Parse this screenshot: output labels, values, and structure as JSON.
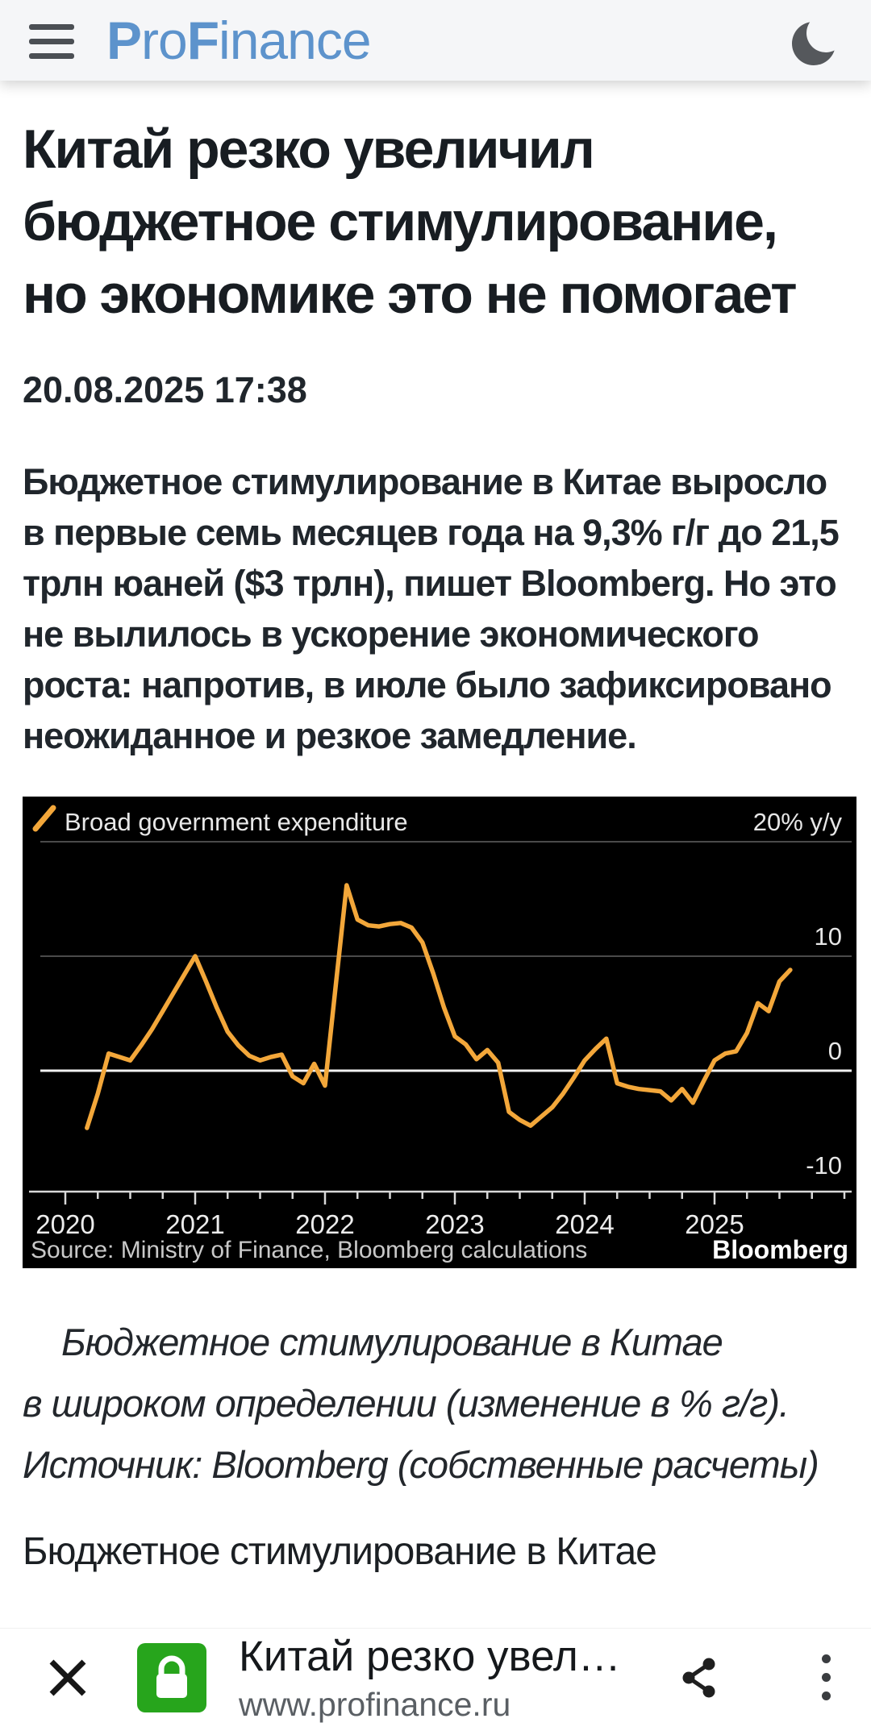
{
  "header": {
    "brand": "ProFinance",
    "brand_parts": {
      "p1": "P",
      "p2": "ro",
      "p3": "F",
      "p4": "inance"
    },
    "icons": [
      "hamburger-icon",
      "moon-icon"
    ],
    "brand_color": "#5D93CC"
  },
  "article": {
    "title": "Китай резко увеличил бюджетное стимулирование, но экономике это не помогает",
    "datetime": "20.08.2025 17:38",
    "lead": "Бюджетное стимулирование в Китае выросло в первые семь месяцев года на 9,3% г/г до 21,5 трлн юаней ($3 трлн), пишет Bloomberg. Но это не вылилось в ускорение экономического роста: напротив, в июле было зафиксировано неожиданное и резкое замедление.",
    "caption_lines": [
      "Бюджетное стимулирование в Китае",
      "в широком определении (изменение в % г/г).",
      "Источник: Bloomberg (собственные расчеты)"
    ],
    "next_paragraph": "Бюджетное стимулирование в Китае"
  },
  "chart_data": {
    "type": "line",
    "legend": "Broad government expenditure",
    "x_start": "2020-03",
    "x_freq": "monthly",
    "x_tick_labels": [
      "2020",
      "2021",
      "2022",
      "2023",
      "2024",
      "2025"
    ],
    "y_ticks": [
      {
        "label": "20% y/y",
        "value": 20
      },
      {
        "label": "10",
        "value": 10
      },
      {
        "label": "0",
        "value": 0
      },
      {
        "label": "-10",
        "value": -10
      }
    ],
    "ylim": [
      -11,
      24
    ],
    "values": [
      -5.0,
      -2.0,
      1.5,
      1.2,
      0.9,
      2.2,
      3.6,
      5.2,
      6.8,
      8.4,
      10.0,
      7.8,
      5.5,
      3.4,
      2.2,
      1.3,
      0.9,
      1.2,
      1.4,
      -0.5,
      -1.1,
      0.6,
      -1.3,
      7.5,
      16.2,
      13.2,
      12.7,
      12.6,
      12.8,
      12.9,
      12.5,
      11.2,
      8.5,
      5.5,
      3.0,
      2.3,
      1.0,
      1.8,
      0.7,
      -3.6,
      -4.3,
      -4.8,
      -4.0,
      -3.2,
      -2.0,
      -0.6,
      0.9,
      1.9,
      2.8,
      -1.1,
      -1.4,
      -1.6,
      -1.7,
      -1.8,
      -2.6,
      -1.6,
      -2.8,
      -0.9,
      0.9,
      1.5,
      1.7,
      3.3,
      5.9,
      5.2,
      7.8,
      8.8
    ],
    "source": "Source: Ministry of Finance, Bloomberg calculations",
    "brand": "Bloomberg",
    "colors": {
      "bg": "#000000",
      "line": "#F3A73A",
      "grid": "#4A4A4A",
      "zero_line": "#F2F2F2",
      "axis": "#D8D8D8",
      "text": "#E6E6E6"
    },
    "grid": true,
    "legend_position": "top-left"
  },
  "bottom_bar": {
    "page_title": "Китай резко увел…",
    "url": "www.profinance.ru",
    "icons": [
      "close-icon",
      "lock-icon",
      "share-icon",
      "kebab-menu-icon"
    ],
    "lock_green": "#27A51C"
  }
}
